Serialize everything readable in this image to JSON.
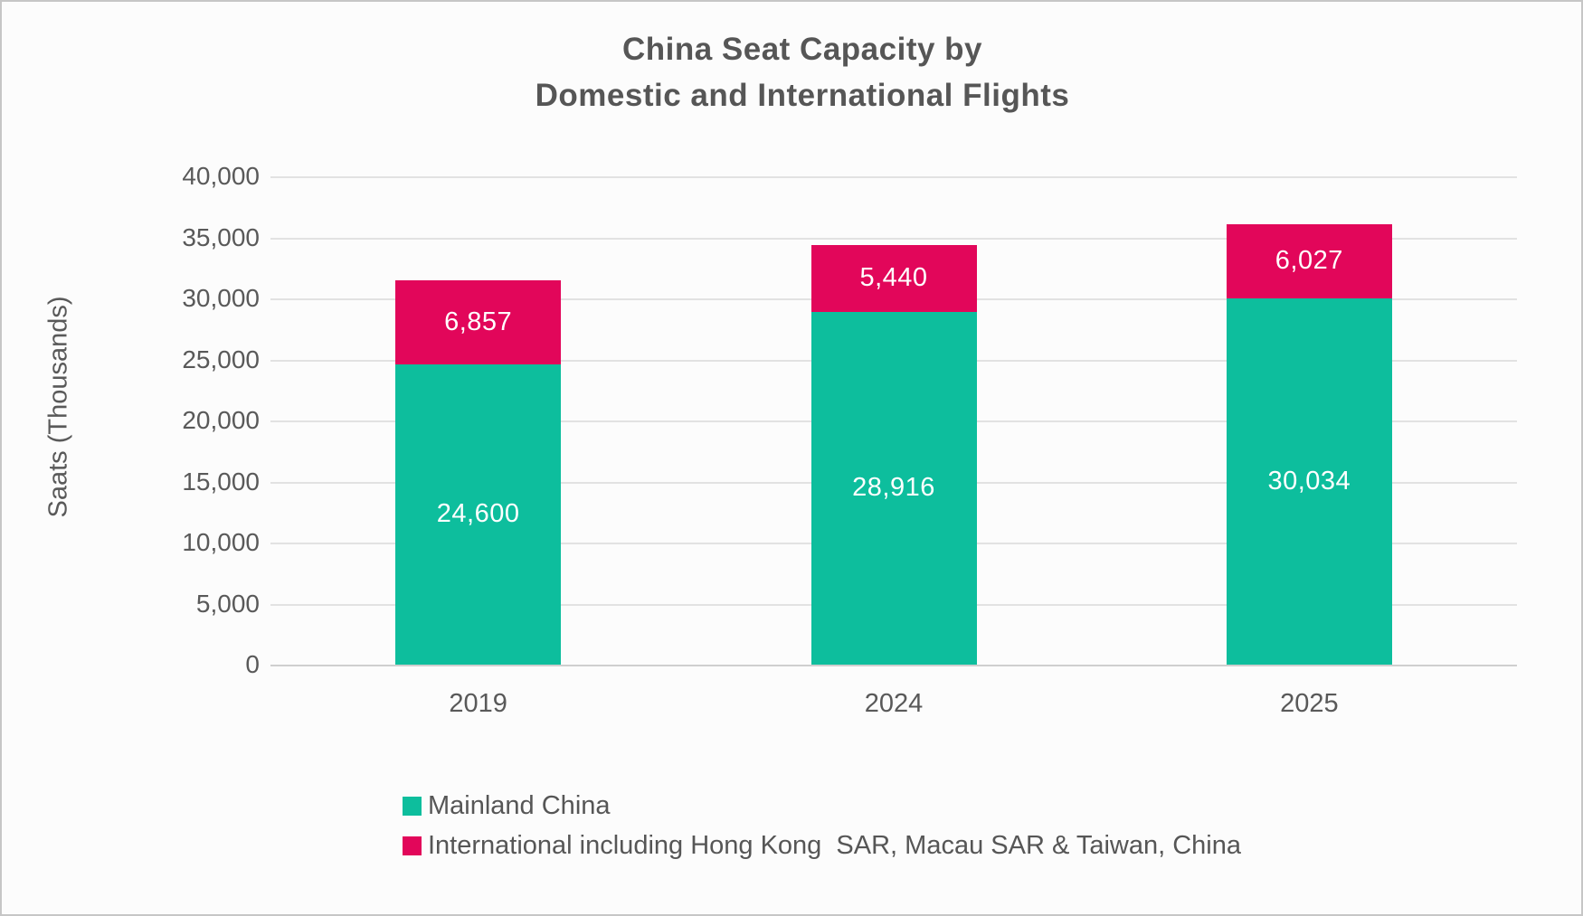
{
  "title": {
    "line1": "China Seat Capacity by",
    "line2": "Domestic and International Flights"
  },
  "chart_data": {
    "type": "bar",
    "stacked": true,
    "title": "China Seat Capacity by Domestic and International Flights",
    "xlabel": "",
    "ylabel": "Saats (Thousands)",
    "categories": [
      "2019",
      "2024",
      "2025"
    ],
    "series": [
      {
        "key": "mainland-china",
        "name": "Mainland China",
        "color": "#0dbe9d",
        "values": [
          24600,
          28916,
          30034
        ]
      },
      {
        "key": "international",
        "name": "International including Hong Kong  SAR, Macau SAR & Taiwan, China",
        "color": "#e2065a",
        "values": [
          6857,
          5440,
          6027
        ]
      }
    ],
    "totals": [
      31457,
      34356,
      36061
    ],
    "ylim": [
      0,
      40000
    ],
    "ytick_step": 5000,
    "ytick_labels": [
      "0",
      "5,000",
      "10,000",
      "15,000",
      "20,000",
      "25,000",
      "30,000",
      "35,000",
      "40,000"
    ],
    "grid": true,
    "legend_position": "bottom-left",
    "data_labels": "white, centered in each segment, thousands comma format"
  },
  "colors": {
    "teal": "#0dbe9d",
    "pink": "#e2065a",
    "text": "#595959",
    "title_text": "#565656",
    "gridline": "#e2e2e2",
    "axis_line": "#cfcfcf",
    "bar_label": "#ffffff",
    "background": "#fcfcfc",
    "border": "#c6c6c6"
  }
}
